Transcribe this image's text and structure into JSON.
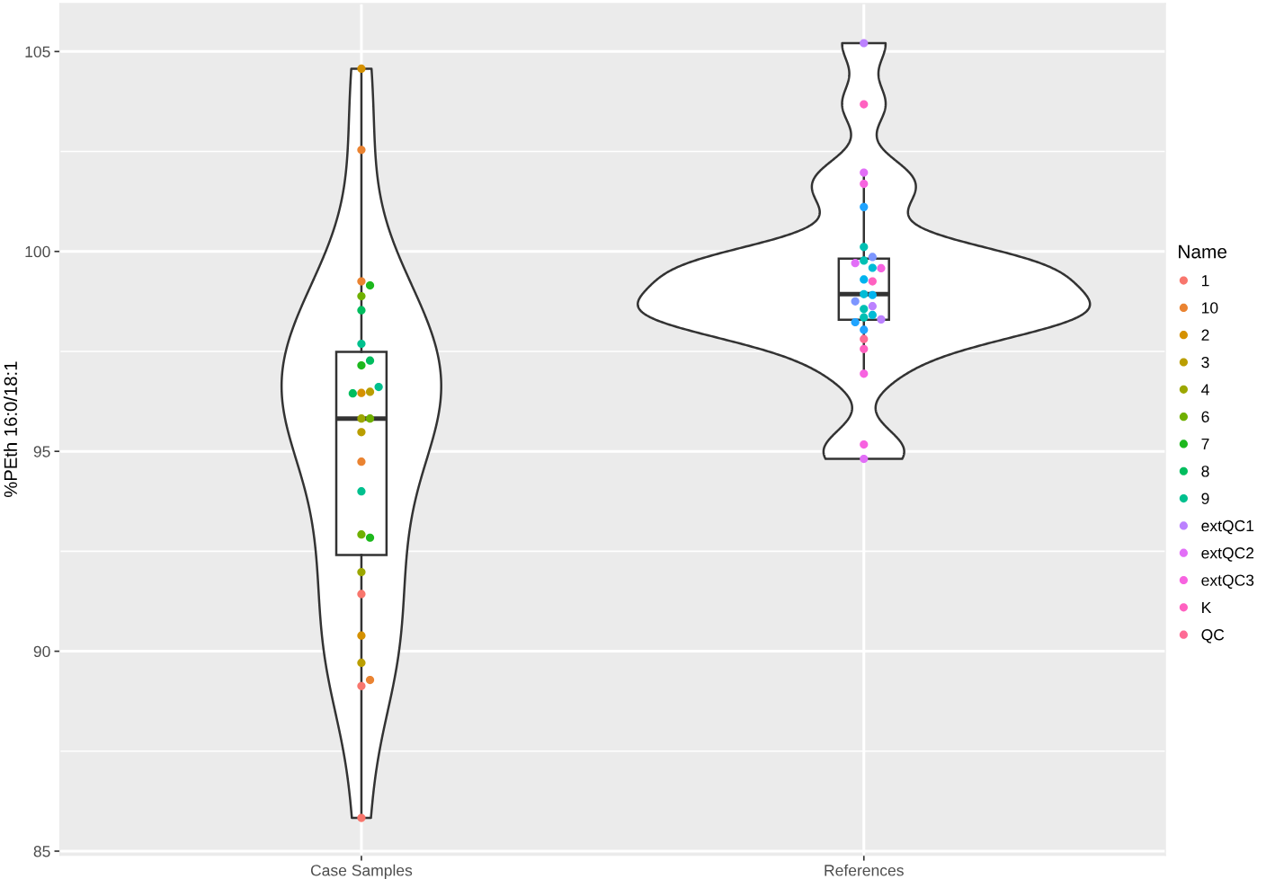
{
  "chart_data": {
    "type": "box",
    "ylabel": "%PEth 16:0/18:1",
    "legend_title": "Name",
    "legend": "right",
    "grid": true,
    "marker": "circle",
    "categories": [
      "Case Samples",
      "References"
    ],
    "ylim": [
      84.9,
      106.2
    ],
    "yticks": [
      85,
      90,
      95,
      100,
      105
    ],
    "series": [
      {
        "color": "#333333",
        "boxes": [
          {
            "low": 85.83,
            "q1": 92.41,
            "median": 95.82,
            "q3": 97.49,
            "high": 104.57
          },
          {
            "low": 96.94,
            "q1": 98.29,
            "median": 98.93,
            "q3": 99.82,
            "high": 101.97
          }
        ]
      },
      {
        "type": "scatter",
        "name": "1",
        "color": "#F8766D",
        "x": [
          "Case Samples",
          "Case Samples",
          "Case Samples"
        ],
        "values": [
          91.43,
          89.13,
          85.83
        ]
      },
      {
        "type": "scatter",
        "name": "10",
        "color": "#EA8331",
        "x": [
          "Case Samples",
          "Case Samples",
          "Case Samples",
          "Case Samples"
        ],
        "values": [
          102.54,
          99.25,
          94.74,
          89.28
        ]
      },
      {
        "type": "scatter",
        "name": "2",
        "color": "#D59100",
        "x": [
          "Case Samples",
          "Case Samples",
          "Case Samples"
        ],
        "values": [
          104.57,
          96.46,
          90.39
        ]
      },
      {
        "type": "scatter",
        "name": "3",
        "color": "#BA9E00",
        "x": [
          "Case Samples",
          "Case Samples",
          "Case Samples"
        ],
        "values": [
          96.49,
          95.48,
          89.71
        ]
      },
      {
        "type": "scatter",
        "name": "4",
        "color": "#9CA700",
        "x": [
          "Case Samples",
          "Case Samples"
        ],
        "values": [
          95.82,
          91.98
        ]
      },
      {
        "type": "scatter",
        "name": "6",
        "color": "#6FB000",
        "x": [
          "Case Samples",
          "Case Samples",
          "Case Samples"
        ],
        "values": [
          98.88,
          95.82,
          92.92
        ]
      },
      {
        "type": "scatter",
        "name": "7",
        "color": "#1DB81D",
        "x": [
          "Case Samples",
          "Case Samples",
          "Case Samples"
        ],
        "values": [
          99.15,
          97.15,
          92.84
        ]
      },
      {
        "type": "scatter",
        "name": "8",
        "color": "#00BD5E",
        "x": [
          "Case Samples",
          "Case Samples",
          "Case Samples"
        ],
        "values": [
          98.53,
          97.27,
          96.45
        ]
      },
      {
        "type": "scatter",
        "name": "9",
        "color": "#00C08E",
        "x": [
          "Case Samples",
          "Case Samples",
          "Case Samples"
        ],
        "values": [
          97.69,
          96.61,
          94.0
        ]
      },
      {
        "type": "scatter",
        "color": "#00C0B3",
        "x": [
          "References",
          "References",
          "References",
          "References"
        ],
        "values": [
          100.11,
          99.77,
          98.56,
          98.35
        ]
      },
      {
        "type": "scatter",
        "color": "#00BCD6",
        "x": [
          "References",
          "References",
          "References"
        ],
        "values": [
          99.59,
          98.93,
          98.41
        ]
      },
      {
        "type": "scatter",
        "color": "#00B4EF",
        "x": [
          "References",
          "References"
        ],
        "values": [
          99.3,
          98.91
        ]
      },
      {
        "type": "scatter",
        "color": "#20A4FF",
        "x": [
          "References",
          "References",
          "References"
        ],
        "values": [
          101.11,
          98.23,
          98.04
        ]
      },
      {
        "type": "scatter",
        "color": "#7C96FF",
        "x": [
          "References",
          "References"
        ],
        "values": [
          99.86,
          98.75
        ]
      },
      {
        "type": "scatter",
        "name": "extQC1",
        "color": "#BB81FF",
        "x": [
          "References",
          "References",
          "References"
        ],
        "values": [
          105.21,
          98.63,
          98.3
        ]
      },
      {
        "type": "scatter",
        "name": "extQC2",
        "color": "#E26EF7",
        "x": [
          "References",
          "References",
          "References"
        ],
        "values": [
          101.97,
          99.71,
          94.81
        ]
      },
      {
        "type": "scatter",
        "name": "extQC3",
        "color": "#F763E0",
        "x": [
          "References",
          "References",
          "References",
          "References"
        ],
        "values": [
          101.69,
          99.58,
          96.94,
          95.17
        ]
      },
      {
        "type": "scatter",
        "name": "K",
        "color": "#FF61C0",
        "x": [
          "References",
          "References",
          "References"
        ],
        "values": [
          103.68,
          99.25,
          97.56
        ]
      },
      {
        "type": "scatter",
        "name": "QC",
        "color": "#FE6B95",
        "x": [
          "References"
        ],
        "values": [
          97.81
        ]
      }
    ]
  }
}
